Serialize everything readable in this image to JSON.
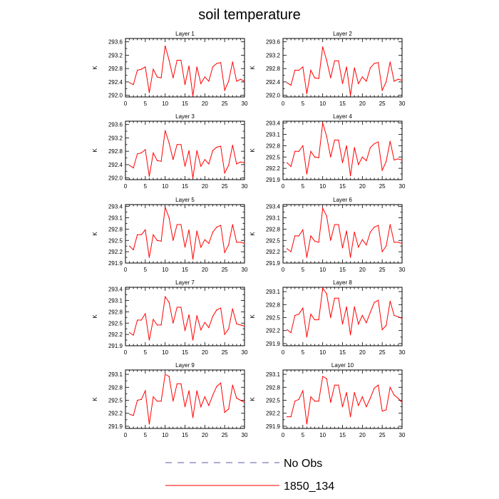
{
  "title": "soil temperature",
  "legend": {
    "placement": "bottom",
    "entries": [
      {
        "label": "No Obs",
        "color": "#5a5aa6",
        "style": "dashed"
      },
      {
        "label": "1850_134",
        "color": "#ff0000",
        "style": "solid"
      }
    ]
  },
  "chart_data": [
    {
      "type": "line",
      "title": "Layer 1",
      "ylabel": "K",
      "xlim": [
        0,
        30
      ],
      "ylim": [
        291.95,
        293.7
      ],
      "xticks": [
        0,
        5,
        10,
        15,
        20,
        25,
        30
      ],
      "yticks": [
        292.0,
        292.4,
        292.8,
        293.2,
        293.6
      ],
      "ytick_labels": [
        "292.0",
        "292.4",
        "292.8",
        "293.2",
        "293.6"
      ],
      "series": [
        {
          "name": "1850_134",
          "color": "#ff0000",
          "x": [
            1,
            2,
            3,
            4,
            5,
            6,
            7,
            8,
            9,
            10,
            11,
            12,
            13,
            14,
            15,
            16,
            17,
            18,
            19,
            20,
            21,
            22,
            23,
            24,
            25,
            26,
            27,
            28,
            29,
            30
          ],
          "values": [
            292.38,
            292.32,
            292.75,
            292.78,
            292.85,
            292.08,
            292.78,
            292.55,
            292.52,
            293.48,
            293.05,
            292.52,
            293.05,
            293.05,
            292.32,
            292.88,
            291.98,
            292.85,
            292.35,
            292.55,
            292.42,
            292.85,
            292.95,
            292.98,
            292.15,
            292.42,
            293.0,
            292.42,
            292.48,
            292.42
          ]
        }
      ]
    },
    {
      "type": "line",
      "title": "Layer 2",
      "ylabel": "K",
      "xlim": [
        0,
        30
      ],
      "ylim": [
        291.95,
        293.7
      ],
      "xticks": [
        0,
        5,
        10,
        15,
        20,
        25,
        30
      ],
      "yticks": [
        292.0,
        292.4,
        292.8,
        293.2,
        293.6
      ],
      "ytick_labels": [
        "292.0",
        "292.4",
        "292.8",
        "293.2",
        "293.6"
      ],
      "series": [
        {
          "name": "1850_134",
          "color": "#ff0000",
          "x": [
            1,
            2,
            3,
            4,
            5,
            6,
            7,
            8,
            9,
            10,
            11,
            12,
            13,
            14,
            15,
            16,
            17,
            18,
            19,
            20,
            21,
            22,
            23,
            24,
            25,
            26,
            27,
            28,
            29,
            30
          ],
          "values": [
            292.38,
            292.3,
            292.75,
            292.75,
            292.85,
            292.05,
            292.75,
            292.52,
            292.5,
            293.45,
            293.05,
            292.52,
            293.03,
            293.03,
            292.35,
            292.85,
            292.0,
            292.82,
            292.35,
            292.55,
            292.42,
            292.82,
            292.95,
            292.98,
            292.15,
            292.4,
            293.0,
            292.42,
            292.48,
            292.45
          ]
        }
      ]
    },
    {
      "type": "line",
      "title": "Layer 3",
      "ylabel": "K",
      "xlim": [
        0,
        30
      ],
      "ylim": [
        291.95,
        293.7
      ],
      "xticks": [
        0,
        5,
        10,
        15,
        20,
        25,
        30
      ],
      "yticks": [
        292.0,
        292.4,
        292.8,
        293.2,
        293.6
      ],
      "ytick_labels": [
        "292.0",
        "292.4",
        "292.8",
        "293.2",
        "293.6"
      ],
      "series": [
        {
          "name": "1850_134",
          "color": "#ff0000",
          "x": [
            1,
            2,
            3,
            4,
            5,
            6,
            7,
            8,
            9,
            10,
            11,
            12,
            13,
            14,
            15,
            16,
            17,
            18,
            19,
            20,
            21,
            22,
            23,
            24,
            25,
            26,
            27,
            28,
            29,
            30
          ],
          "values": [
            292.38,
            292.3,
            292.72,
            292.75,
            292.85,
            292.05,
            292.75,
            292.52,
            292.5,
            293.42,
            293.05,
            292.55,
            293.0,
            293.0,
            292.35,
            292.82,
            292.0,
            292.82,
            292.35,
            292.55,
            292.42,
            292.82,
            292.92,
            292.95,
            292.15,
            292.38,
            292.98,
            292.42,
            292.48,
            292.45
          ]
        }
      ]
    },
    {
      "type": "line",
      "title": "Layer 4",
      "ylabel": "K",
      "xlim": [
        0,
        30
      ],
      "ylim": [
        291.9,
        293.45
      ],
      "xticks": [
        0,
        5,
        10,
        15,
        20,
        25,
        30
      ],
      "yticks": [
        291.9,
        292.2,
        292.5,
        292.8,
        293.1,
        293.4
      ],
      "ytick_labels": [
        "291.9",
        "292.2",
        "292.5",
        "292.8",
        "293.1",
        "293.4"
      ],
      "series": [
        {
          "name": "1850_134",
          "color": "#ff0000",
          "x": [
            1,
            2,
            3,
            4,
            5,
            6,
            7,
            8,
            9,
            10,
            11,
            12,
            13,
            14,
            15,
            16,
            17,
            18,
            19,
            20,
            21,
            22,
            23,
            24,
            25,
            26,
            27,
            28,
            29,
            30
          ],
          "values": [
            292.35,
            292.25,
            292.65,
            292.65,
            292.8,
            292.05,
            292.65,
            292.5,
            292.48,
            293.4,
            293.05,
            292.5,
            292.95,
            292.95,
            292.35,
            292.8,
            292.0,
            292.75,
            292.3,
            292.5,
            292.4,
            292.75,
            292.85,
            292.9,
            292.15,
            292.38,
            292.92,
            292.42,
            292.45,
            292.42
          ]
        }
      ]
    },
    {
      "type": "line",
      "title": "Layer 5",
      "ylabel": "K",
      "xlim": [
        0,
        30
      ],
      "ylim": [
        291.9,
        293.45
      ],
      "xticks": [
        0,
        5,
        10,
        15,
        20,
        25,
        30
      ],
      "yticks": [
        291.9,
        292.2,
        292.5,
        292.8,
        293.1,
        293.4
      ],
      "ytick_labels": [
        "291.9",
        "292.2",
        "292.5",
        "292.8",
        "293.1",
        "293.4"
      ],
      "series": [
        {
          "name": "1850_134",
          "color": "#ff0000",
          "x": [
            1,
            2,
            3,
            4,
            5,
            6,
            7,
            8,
            9,
            10,
            11,
            12,
            13,
            14,
            15,
            16,
            17,
            18,
            19,
            20,
            21,
            22,
            23,
            24,
            25,
            26,
            27,
            28,
            29,
            30
          ],
          "values": [
            292.35,
            292.25,
            292.65,
            292.65,
            292.78,
            292.05,
            292.65,
            292.5,
            292.48,
            293.38,
            293.1,
            292.5,
            292.92,
            292.92,
            292.32,
            292.78,
            292.0,
            292.75,
            292.32,
            292.52,
            292.42,
            292.72,
            292.85,
            292.9,
            292.18,
            292.38,
            292.92,
            292.45,
            292.45,
            292.42
          ]
        }
      ]
    },
    {
      "type": "line",
      "title": "Layer 6",
      "ylabel": "K",
      "xlim": [
        0,
        30
      ],
      "ylim": [
        291.9,
        293.45
      ],
      "xticks": [
        0,
        5,
        10,
        15,
        20,
        25,
        30
      ],
      "yticks": [
        291.9,
        292.2,
        292.5,
        292.8,
        293.1,
        293.4
      ],
      "ytick_labels": [
        "291.9",
        "292.2",
        "292.5",
        "292.8",
        "293.1",
        "293.4"
      ],
      "series": [
        {
          "name": "1850_134",
          "color": "#ff0000",
          "x": [
            1,
            2,
            3,
            4,
            5,
            6,
            7,
            8,
            9,
            10,
            11,
            12,
            13,
            14,
            15,
            16,
            17,
            18,
            19,
            20,
            21,
            22,
            23,
            24,
            25,
            26,
            27,
            28,
            29,
            30
          ],
          "values": [
            292.28,
            292.2,
            292.62,
            292.62,
            292.78,
            292.05,
            292.62,
            292.48,
            292.45,
            293.35,
            293.15,
            292.5,
            292.92,
            292.92,
            292.3,
            292.75,
            292.05,
            292.72,
            292.32,
            292.52,
            292.38,
            292.72,
            292.85,
            292.9,
            292.2,
            292.35,
            292.92,
            292.45,
            292.45,
            292.42
          ]
        }
      ]
    },
    {
      "type": "line",
      "title": "Layer 7",
      "ylabel": "K",
      "xlim": [
        0,
        30
      ],
      "ylim": [
        291.9,
        293.45
      ],
      "xticks": [
        0,
        5,
        10,
        15,
        20,
        25,
        30
      ],
      "yticks": [
        291.9,
        292.2,
        292.5,
        292.8,
        293.1,
        293.4
      ],
      "ytick_labels": [
        "291.9",
        "292.2",
        "292.5",
        "292.8",
        "293.1",
        "293.4"
      ],
      "series": [
        {
          "name": "1850_134",
          "color": "#ff0000",
          "x": [
            1,
            2,
            3,
            4,
            5,
            6,
            7,
            8,
            9,
            10,
            11,
            12,
            13,
            14,
            15,
            16,
            17,
            18,
            19,
            20,
            21,
            22,
            23,
            24,
            25,
            26,
            27,
            28,
            29,
            30
          ],
          "values": [
            292.25,
            292.18,
            292.58,
            292.58,
            292.75,
            292.05,
            292.6,
            292.45,
            292.45,
            293.2,
            293.05,
            292.5,
            292.92,
            292.92,
            292.3,
            292.72,
            292.05,
            292.7,
            292.32,
            292.52,
            292.38,
            292.68,
            292.85,
            292.9,
            292.2,
            292.35,
            292.88,
            292.48,
            292.45,
            292.42
          ]
        }
      ]
    },
    {
      "type": "line",
      "title": "Layer 8",
      "ylabel": "K",
      "xlim": [
        0,
        30
      ],
      "ylim": [
        291.85,
        293.2
      ],
      "xticks": [
        0,
        5,
        10,
        15,
        20,
        25,
        30
      ],
      "yticks": [
        291.9,
        292.2,
        292.5,
        292.8,
        293.1
      ],
      "ytick_labels": [
        "291.9",
        "292.2",
        "292.5",
        "292.8",
        "293.1"
      ],
      "series": [
        {
          "name": "1850_134",
          "color": "#ff0000",
          "x": [
            1,
            2,
            3,
            4,
            5,
            6,
            7,
            8,
            9,
            10,
            11,
            12,
            13,
            14,
            15,
            16,
            17,
            18,
            19,
            20,
            21,
            22,
            23,
            24,
            25,
            26,
            27,
            28,
            29,
            30
          ],
          "values": [
            292.22,
            292.15,
            292.55,
            292.58,
            292.72,
            292.05,
            292.58,
            292.45,
            292.45,
            293.18,
            293.05,
            292.5,
            292.95,
            292.95,
            292.35,
            292.75,
            292.1,
            292.75,
            292.35,
            292.55,
            292.38,
            292.62,
            292.85,
            292.9,
            292.22,
            292.32,
            292.88,
            292.55,
            292.52,
            292.48
          ]
        }
      ]
    },
    {
      "type": "line",
      "title": "Layer 9",
      "ylabel": "K",
      "xlim": [
        0,
        30
      ],
      "ylim": [
        291.85,
        293.2
      ],
      "xticks": [
        0,
        5,
        10,
        15,
        20,
        25,
        30
      ],
      "yticks": [
        291.9,
        292.2,
        292.5,
        292.8,
        293.1
      ],
      "ytick_labels": [
        "291.9",
        "292.2",
        "292.5",
        "292.8",
        "293.1"
      ],
      "series": [
        {
          "name": "1850_134",
          "color": "#ff0000",
          "x": [
            1,
            2,
            3,
            4,
            5,
            6,
            7,
            8,
            9,
            10,
            11,
            12,
            13,
            14,
            15,
            16,
            17,
            18,
            19,
            20,
            21,
            22,
            23,
            24,
            25,
            26,
            27,
            28,
            29,
            30
          ],
          "values": [
            292.18,
            292.15,
            292.5,
            292.52,
            292.72,
            291.95,
            292.58,
            292.48,
            292.48,
            293.1,
            293.05,
            292.48,
            292.88,
            292.88,
            292.35,
            292.72,
            292.1,
            292.72,
            292.35,
            292.58,
            292.38,
            292.62,
            292.82,
            292.9,
            292.22,
            292.3,
            292.85,
            292.55,
            292.5,
            292.45
          ]
        }
      ]
    },
    {
      "type": "line",
      "title": "Layer 10",
      "ylabel": "K",
      "xlim": [
        0,
        30
      ],
      "ylim": [
        291.85,
        293.2
      ],
      "xticks": [
        0,
        5,
        10,
        15,
        20,
        25,
        30
      ],
      "yticks": [
        291.9,
        292.2,
        292.5,
        292.8,
        293.1
      ],
      "ytick_labels": [
        "291.9",
        "292.2",
        "292.5",
        "292.8",
        "293.1"
      ],
      "series": [
        {
          "name": "1850_134",
          "color": "#ff0000",
          "x": [
            1,
            2,
            3,
            4,
            5,
            6,
            7,
            8,
            9,
            10,
            11,
            12,
            13,
            14,
            15,
            16,
            17,
            18,
            19,
            20,
            21,
            22,
            23,
            24,
            25,
            26,
            27,
            28,
            29,
            30
          ],
          "values": [
            292.12,
            292.12,
            292.48,
            292.52,
            292.72,
            291.95,
            292.58,
            292.48,
            292.48,
            293.05,
            293.0,
            292.45,
            292.85,
            292.85,
            292.35,
            292.68,
            292.12,
            292.68,
            292.38,
            292.58,
            292.35,
            292.55,
            292.78,
            292.85,
            292.25,
            292.28,
            292.8,
            292.62,
            292.55,
            292.45
          ]
        }
      ]
    }
  ]
}
